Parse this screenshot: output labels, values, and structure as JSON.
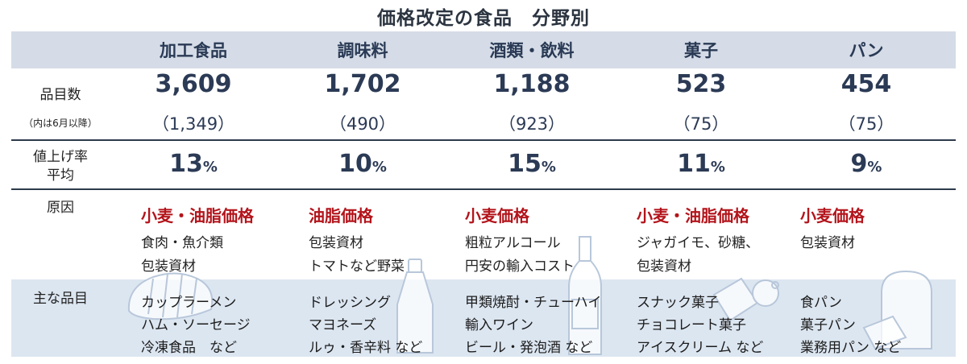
{
  "title": "価格改定の食品　分野別",
  "categories": [
    "加工食品",
    "調味料",
    "酒類・飲料",
    "菓子",
    "パン"
  ],
  "rows": {
    "items_count_label": "品目数",
    "items_count_sub_label": "（内は6月以降）",
    "rate_label_1": "値上げ率",
    "rate_label_2": "平均",
    "cause_label": "原因",
    "main_items_label": "主な品目"
  },
  "counts": [
    "3,609",
    "1,702",
    "1,188",
    "523",
    "454"
  ],
  "counts_june": [
    "（1,349）",
    "（490）",
    "（923）",
    "（75）",
    "（75）"
  ],
  "rates": [
    "13",
    "10",
    "15",
    "11",
    "9"
  ],
  "pct_symbol": "%",
  "causes": [
    {
      "main": "小麦・油脂価格",
      "lines": [
        "食肉・魚介類",
        "包装資材"
      ]
    },
    {
      "main": "油脂価格",
      "lines": [
        "包装資材",
        "トマトなど野菜"
      ]
    },
    {
      "main": "小麦価格",
      "lines": [
        "粗粒アルコール",
        "円安の輸入コスト"
      ]
    },
    {
      "main": "小麦・油脂価格",
      "lines": [
        "ジャガイモ、砂糖、",
        "包装資材"
      ]
    },
    {
      "main": "小麦価格",
      "lines": [
        "包装資材"
      ]
    }
  ],
  "main_items": [
    [
      "カップラーメン",
      "ハム・ソーセージ",
      "冷凍食品　など"
    ],
    [
      "ドレッシング",
      "マヨネーズ",
      "ルゥ・香辛料 など"
    ],
    [
      "甲類焼酎・チューハイ",
      "輸入ワイン",
      "ビール・発泡酒 など"
    ],
    [
      "スナック菓子",
      "チョコレート菓子",
      "アイスクリーム など"
    ],
    [
      "食パン",
      "菓子パン",
      "業務用パン など"
    ]
  ],
  "colors": {
    "header_band": "#d5dce7",
    "items_band": "#dce6f1",
    "cause_red": "#b3141b",
    "number_navy": "#2b3a55"
  },
  "icons": [
    "bread-loaf-icon",
    "bottle-icon",
    "wine-bottle-icon",
    "snack-icon",
    "toast-icon"
  ]
}
